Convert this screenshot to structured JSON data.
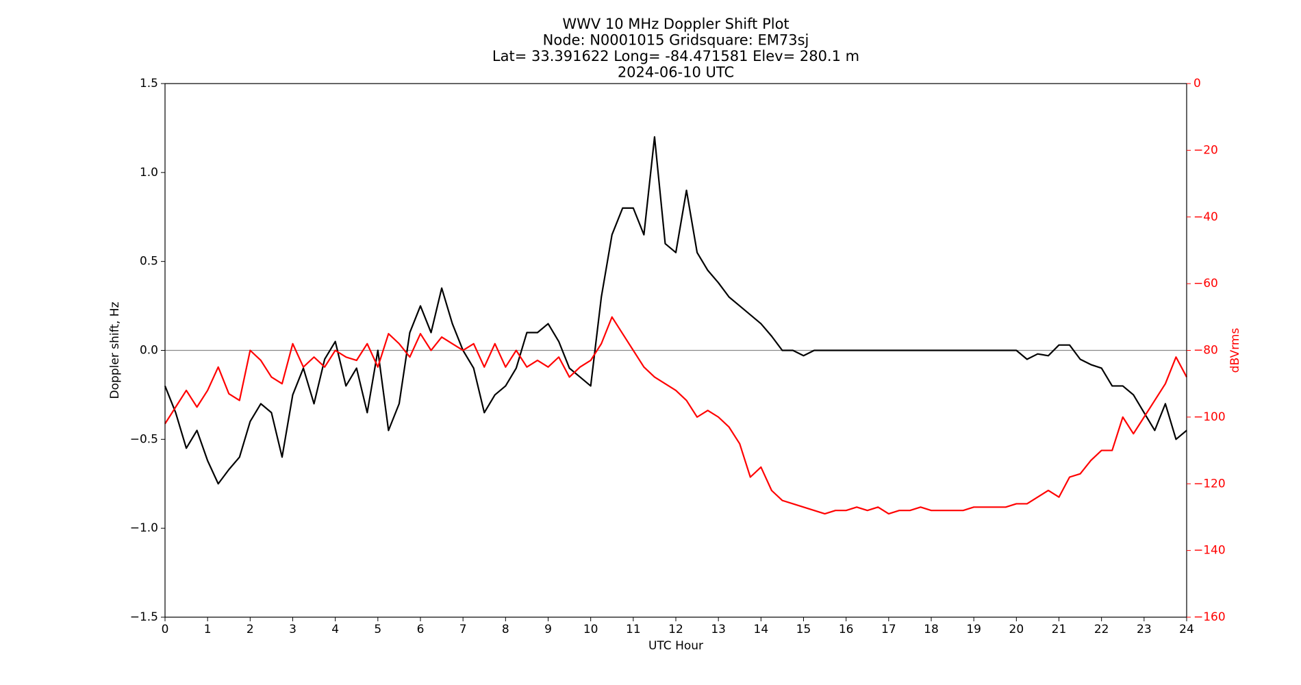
{
  "chart_data": {
    "type": "line",
    "title_lines": [
      "WWV 10 MHz Doppler Shift Plot",
      "Node:  N0001015     Gridsquare:  EM73sj",
      "Lat= 33.391622    Long= -84.471581    Elev= 280.1 m",
      "2024-06-10  UTC"
    ],
    "x_label": "UTC Hour",
    "y_label": "Doppler shift, Hz",
    "y2_label": "dBVrms",
    "y2_color": "#ff0000",
    "xlim": [
      0,
      24
    ],
    "xticks": [
      0,
      1,
      2,
      3,
      4,
      5,
      6,
      7,
      8,
      9,
      10,
      11,
      12,
      13,
      14,
      15,
      16,
      17,
      18,
      19,
      20,
      21,
      22,
      23,
      24
    ],
    "ylim": [
      -1.5,
      1.5
    ],
    "yticks": [
      {
        "value": -1.5,
        "label": "−1.5"
      },
      {
        "value": -1,
        "label": "−1.0"
      },
      {
        "value": -0.5,
        "label": "−0.5"
      },
      {
        "value": 0,
        "label": "0.0"
      },
      0.5,
      {
        "value": 1,
        "label": "1.0"
      },
      1.5
    ],
    "y2lim": [
      -160,
      0
    ],
    "y2ticks": [
      {
        "value": -160,
        "label": "−160"
      },
      {
        "value": -140,
        "label": "−140"
      },
      {
        "value": -120,
        "label": "−120"
      },
      {
        "value": -100,
        "label": "−100"
      },
      {
        "value": -80,
        "label": "−80"
      },
      {
        "value": -60,
        "label": "−60"
      },
      {
        "value": -40,
        "label": "−40"
      },
      {
        "value": -20,
        "label": "−20"
      },
      0
    ],
    "reference_line": 0,
    "reference_color": "#888888",
    "x": [
      0,
      0.25,
      0.5,
      0.75,
      1,
      1.25,
      1.5,
      1.75,
      2,
      2.25,
      2.5,
      2.75,
      3,
      3.25,
      3.5,
      3.75,
      4,
      4.25,
      4.5,
      4.75,
      5,
      5.25,
      5.5,
      5.75,
      6,
      6.25,
      6.5,
      6.75,
      7,
      7.25,
      7.5,
      7.75,
      8,
      8.25,
      8.5,
      8.75,
      9,
      9.25,
      9.5,
      9.75,
      10,
      10.25,
      10.5,
      10.75,
      11,
      11.25,
      11.5,
      11.75,
      12,
      12.25,
      12.5,
      12.75,
      13,
      13.25,
      13.5,
      13.75,
      14,
      14.25,
      14.5,
      14.75,
      15,
      15.25,
      15.5,
      15.75,
      16,
      16.25,
      16.5,
      16.75,
      17,
      17.25,
      17.5,
      17.75,
      18,
      18.25,
      18.5,
      18.75,
      19,
      19.25,
      19.5,
      19.75,
      20,
      20.25,
      20.5,
      20.75,
      21,
      21.25,
      21.5,
      21.75,
      22,
      22.25,
      22.5,
      22.75,
      23,
      23.25,
      23.5,
      23.75,
      24
    ],
    "series": [
      {
        "color": "#000000",
        "axis": "y",
        "values": [
          -0.2,
          -0.35,
          -0.55,
          -0.45,
          -0.62,
          -0.75,
          -0.67,
          -0.6,
          -0.4,
          -0.3,
          -0.35,
          -0.6,
          -0.25,
          -0.1,
          -0.3,
          -0.05,
          0.05,
          -0.2,
          -0.1,
          -0.35,
          0,
          -0.45,
          -0.3,
          0.1,
          0.25,
          0.1,
          0.35,
          0.15,
          0,
          -0.1,
          -0.35,
          -0.25,
          -0.2,
          -0.1,
          0.1,
          0.1,
          0.15,
          0.05,
          -0.1,
          -0.15,
          -0.2,
          0.3,
          0.65,
          0.8,
          0.8,
          0.65,
          1.2,
          0.6,
          0.55,
          0.9,
          0.55,
          0.45,
          0.38,
          0.3,
          0.25,
          0.2,
          0.15,
          0.08,
          0,
          0,
          -0.03,
          0,
          0,
          0,
          0,
          0,
          0,
          0,
          0,
          0,
          0,
          0,
          0,
          0,
          0,
          0,
          0,
          0,
          0,
          0,
          0,
          -0.05,
          -0.02,
          -0.03,
          0.03,
          0.03,
          -0.05,
          -0.08,
          -0.1,
          -0.2,
          -0.2,
          -0.25,
          -0.35,
          -0.45,
          -0.3,
          -0.5,
          -0.45
        ]
      },
      {
        "color": "#ff0000",
        "axis": "y2",
        "values": [
          -102,
          -97,
          -92,
          -97,
          -92,
          -85,
          -93,
          -95,
          -80,
          -83,
          -88,
          -90,
          -78,
          -85,
          -82,
          -85,
          -80,
          -82,
          -83,
          -78,
          -85,
          -75,
          -78,
          -82,
          -75,
          -80,
          -76,
          -78,
          -80,
          -78,
          -85,
          -78,
          -85,
          -80,
          -85,
          -83,
          -85,
          -82,
          -88,
          -85,
          -83,
          -78,
          -70,
          -75,
          -80,
          -85,
          -88,
          -90,
          -92,
          -95,
          -100,
          -98,
          -100,
          -103,
          -108,
          -118,
          -115,
          -122,
          -125,
          -126,
          -127,
          -128,
          -129,
          -128,
          -128,
          -127,
          -128,
          -127,
          -129,
          -128,
          -128,
          -127,
          -128,
          -128,
          -128,
          -128,
          -127,
          -127,
          -127,
          -127,
          -126,
          -126,
          -124,
          -122,
          -124,
          -118,
          -117,
          -113,
          -110,
          -110,
          -100,
          -105,
          -100,
          -95,
          -90,
          -82,
          -88
        ]
      }
    ]
  }
}
